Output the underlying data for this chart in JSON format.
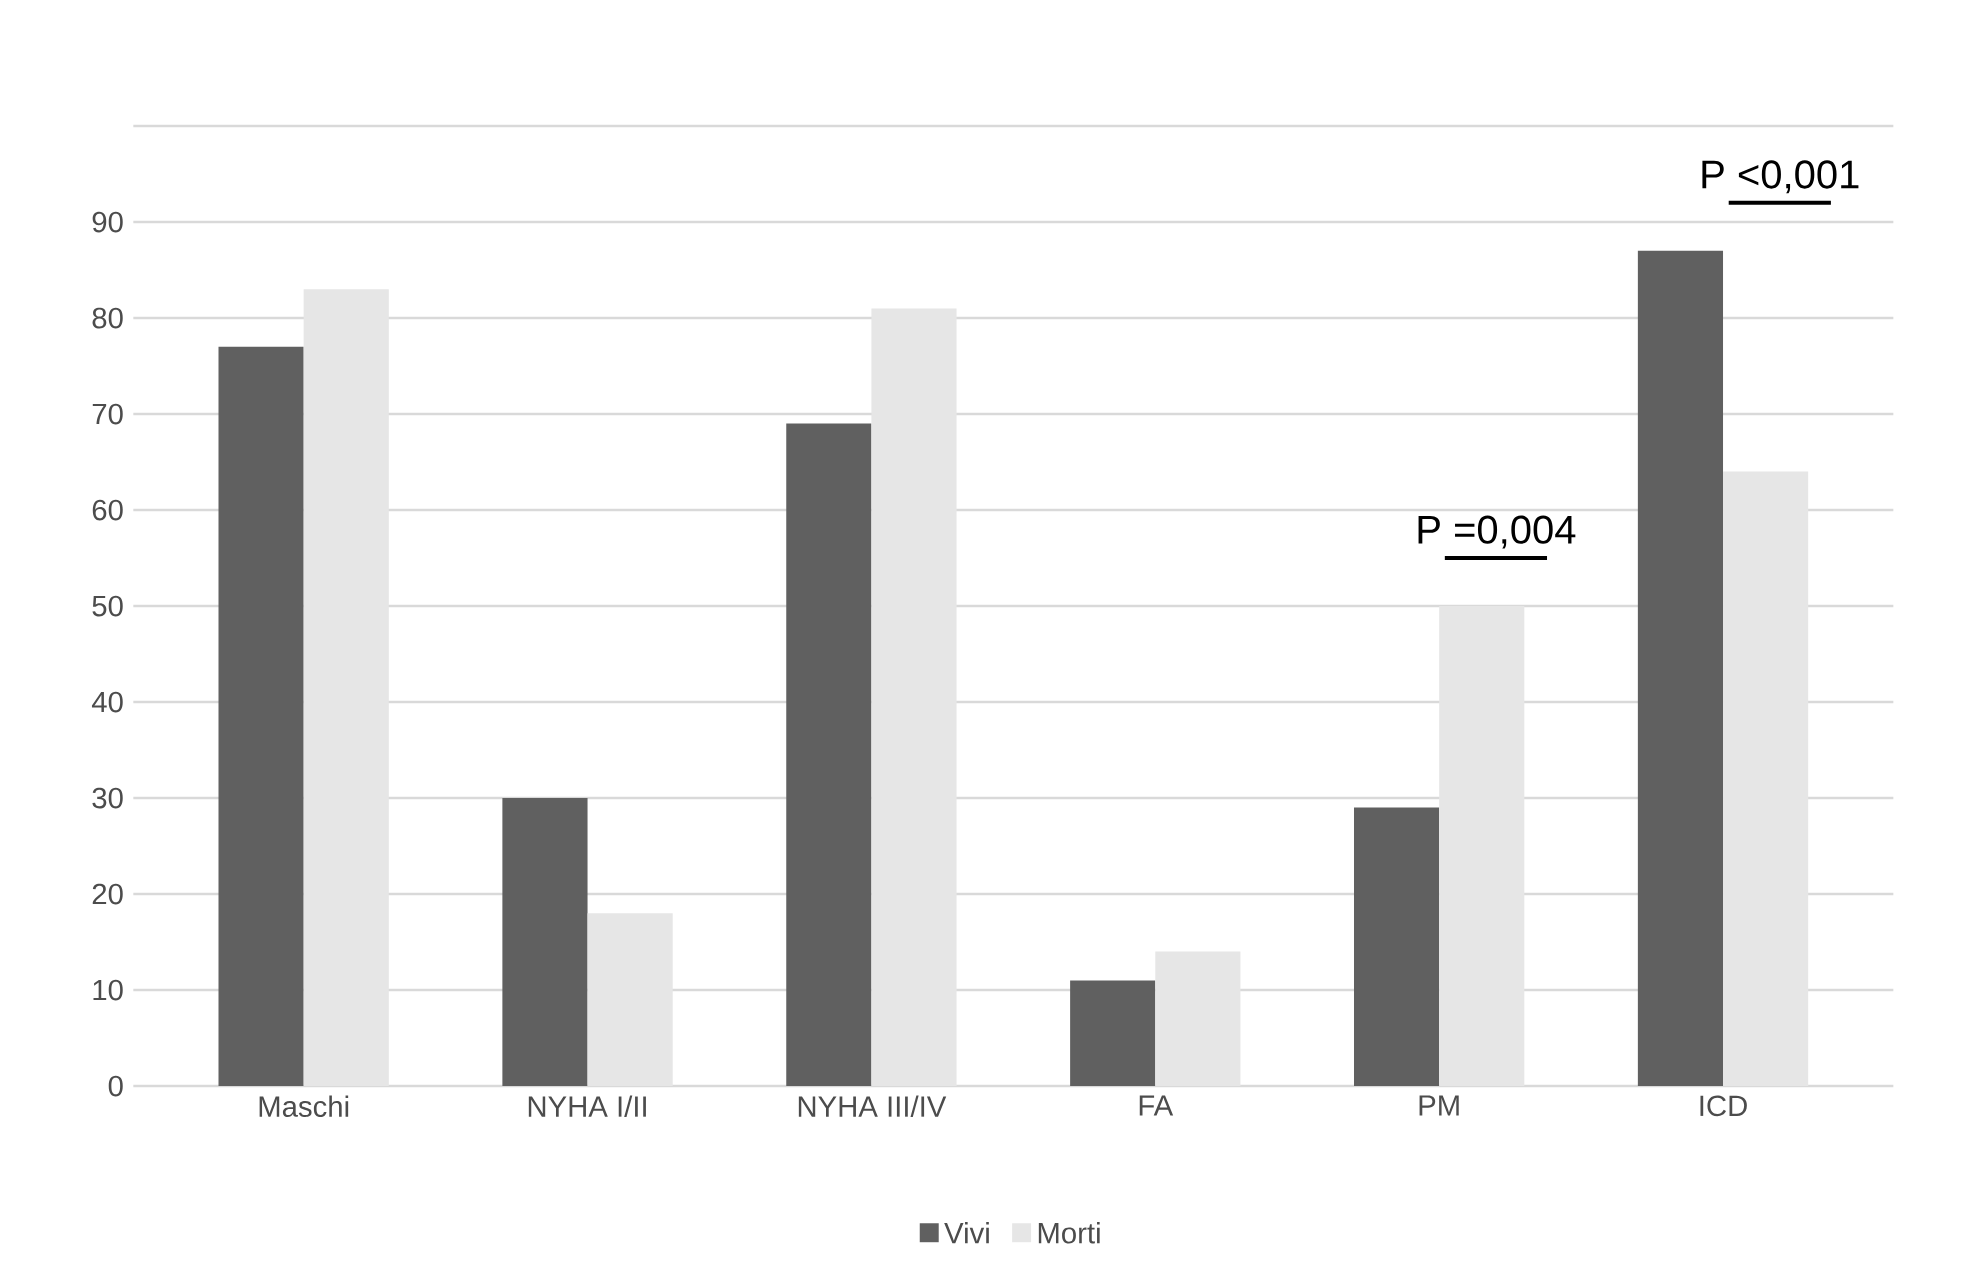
{
  "chart_data": {
    "type": "bar",
    "categories": [
      "Maschi",
      "NYHA I/II",
      "NYHA III/IV",
      "FA",
      "PM",
      "ICD"
    ],
    "series": [
      {
        "name": "Vivi",
        "color": "#606060",
        "values": [
          77,
          30,
          69,
          11,
          29,
          87
        ]
      },
      {
        "name": "Morti",
        "color": "#e6e6e6",
        "values": [
          83,
          18,
          81,
          14,
          50,
          64
        ]
      }
    ],
    "ylim": [
      0,
      100
    ],
    "yticks": [
      0,
      10,
      20,
      30,
      40,
      50,
      60,
      70,
      80,
      90,
      {
        "value": 100,
        "label": null
      }
    ],
    "grid": "y",
    "legend": "bottom",
    "annotations": [
      "P =0,004",
      "P <0,001"
    ]
  }
}
